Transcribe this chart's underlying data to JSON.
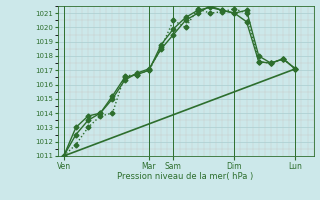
{
  "xlabel": "Pression niveau de la mer( hPa )",
  "ylim": [
    1011,
    1021.5
  ],
  "yticks": [
    1011,
    1012,
    1013,
    1014,
    1015,
    1016,
    1017,
    1018,
    1019,
    1020,
    1021
  ],
  "bg_color": "#cce8ea",
  "grid_major_color": "#aacdd0",
  "grid_minor_color": "#bbdadd",
  "line_color": "#2d6e2d",
  "xlim": [
    0,
    21
  ],
  "xtick_labels": [
    "Ven",
    "Mar",
    "Sam",
    "Dim",
    "Lun"
  ],
  "xtick_positions": [
    0.5,
    7.5,
    9.5,
    14.5,
    19.5
  ],
  "vline_positions": [
    0.5,
    7.5,
    9.5,
    14.5,
    19.5
  ],
  "series": [
    {
      "x": [
        0.5,
        1.5,
        2.5,
        3.5,
        4.5,
        5.5,
        6.5,
        7.5,
        8.5,
        9.5,
        10.5,
        11.5,
        12.5,
        13.5,
        14.5,
        15.5,
        16.5,
        17.5,
        18.5,
        19.5
      ],
      "y": [
        1011.0,
        1011.8,
        1013.0,
        1013.8,
        1014.0,
        1016.6,
        1016.7,
        1017.0,
        1018.6,
        1020.5,
        1020.0,
        1021.3,
        1021.0,
        1021.1,
        1021.3,
        1021.0,
        1017.6,
        1017.5,
        1017.8,
        1017.1
      ],
      "marker": "D",
      "markersize": 2.5,
      "linestyle": ":",
      "linewidth": 1.0
    },
    {
      "x": [
        0.5,
        1.5,
        2.5,
        3.5,
        4.5,
        5.5,
        6.5,
        7.5,
        8.5,
        9.5,
        10.5,
        11.5,
        12.5,
        13.5,
        14.5,
        15.5,
        16.5,
        17.5,
        18.5,
        19.5
      ],
      "y": [
        1011.0,
        1013.0,
        1013.8,
        1014.0,
        1015.2,
        1016.5,
        1016.7,
        1017.0,
        1018.8,
        1019.9,
        1020.7,
        1021.2,
        1021.4,
        1021.2,
        1021.0,
        1020.4,
        1017.6,
        1017.5,
        1017.8,
        1017.1
      ],
      "marker": "D",
      "markersize": 2.5,
      "linestyle": "-",
      "linewidth": 1.0
    },
    {
      "x": [
        0.5,
        1.5,
        2.5,
        3.5,
        4.5,
        5.5,
        6.5,
        7.5,
        8.5,
        9.5,
        10.5,
        11.5,
        12.5,
        13.5,
        14.5,
        15.5,
        16.5,
        17.5,
        18.5,
        19.5
      ],
      "y": [
        1011.0,
        1012.5,
        1013.5,
        1014.0,
        1015.0,
        1016.3,
        1016.8,
        1017.1,
        1018.5,
        1019.5,
        1020.5,
        1021.0,
        1021.5,
        1021.2,
        1021.0,
        1021.2,
        1018.0,
        1017.5,
        1017.8,
        1017.1
      ],
      "marker": "D",
      "markersize": 2.5,
      "linestyle": "-",
      "linewidth": 1.0
    },
    {
      "x": [
        0.5,
        19.5
      ],
      "y": [
        1011.0,
        1017.1
      ],
      "marker": null,
      "markersize": 0,
      "linestyle": "-",
      "linewidth": 1.2
    }
  ]
}
